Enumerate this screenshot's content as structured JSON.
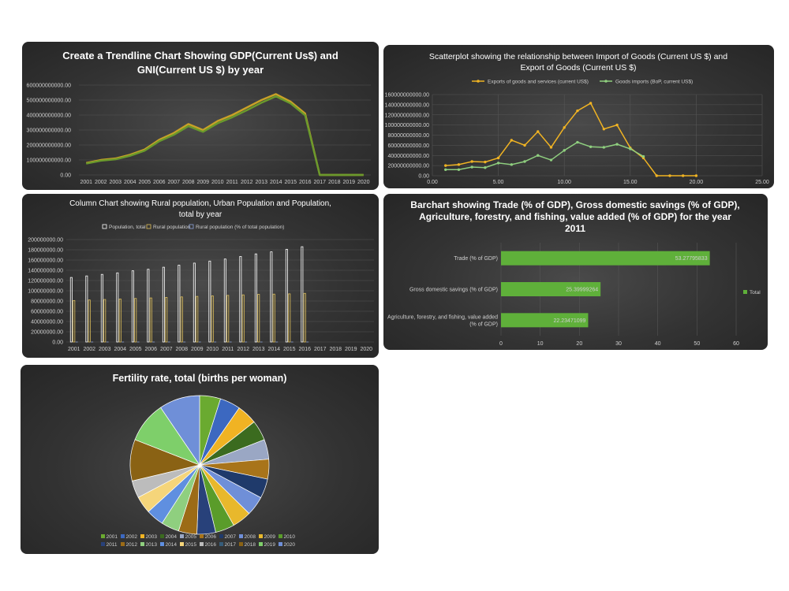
{
  "chart_data": [
    {
      "type": "line",
      "title": "Create a Trendline Chart Showing GDP(Current Us$) and GNI(Current US $) by year",
      "title_lines": [
        "Create a Trendline Chart Showing GDP(Current Us$) and",
        "GNI(Current US $) by year"
      ],
      "categories": [
        "2001",
        "2002",
        "2003",
        "2004",
        "2005",
        "2006",
        "2007",
        "2008",
        "2009",
        "2010",
        "2011",
        "2012",
        "2013",
        "2014",
        "2015",
        "2016",
        "2017",
        "2018",
        "2019",
        "2020"
      ],
      "series": [
        {
          "values": [
            80000000000,
            100000000000,
            110000000000,
            135000000000,
            170000000000,
            235000000000,
            280000000000,
            340000000000,
            300000000000,
            360000000000,
            400000000000,
            450000000000,
            500000000000,
            540000000000,
            490000000000,
            410000000000,
            0,
            0,
            0,
            0
          ]
        },
        {
          "values": [
            76000000000,
            95000000000,
            104000000000,
            128000000000,
            162000000000,
            225000000000,
            268000000000,
            326000000000,
            288000000000,
            345000000000,
            385000000000,
            432000000000,
            482000000000,
            525000000000,
            478000000000,
            398000000000,
            0,
            0,
            0,
            0
          ]
        }
      ],
      "colors": [
        "#c9a227",
        "#6a9a2c"
      ],
      "ylim": [
        0,
        600000000000
      ],
      "yticks": [
        "0.00",
        "100000000000.00",
        "200000000000.00",
        "300000000000.00",
        "400000000000.00",
        "500000000000.00",
        "600000000000.00"
      ],
      "grid": true
    },
    {
      "type": "scatter",
      "title": "Scatterplot showing the relationship between Import of Goods  (Current US $)  and Export of Goods (Current US $)",
      "title_lines": [
        "Scatterplot showing the relationship between Import of Goods  (Current US $)  and",
        "Export of Goods (Current US $)"
      ],
      "legend_position": "top",
      "series": [
        {
          "name": "Exports of goods and services (current US$)",
          "color": "#f0b323",
          "x": [
            1,
            2,
            3,
            4,
            5,
            6,
            7,
            8,
            9,
            10,
            11,
            12,
            13,
            14,
            15,
            16,
            17,
            18,
            19,
            20
          ],
          "y": [
            20000000000,
            22000000000,
            28000000000,
            27000000000,
            35000000000,
            70000000000,
            60000000000,
            87000000000,
            56000000000,
            95000000000,
            128000000000,
            143000000000,
            92000000000,
            100000000000,
            55000000000,
            35000000000,
            0,
            0,
            0,
            0
          ]
        },
        {
          "name": "Goods imports (BoP, current US$)",
          "color": "#8fcf7f",
          "x": [
            1,
            2,
            3,
            4,
            5,
            6,
            7,
            8,
            9,
            10,
            11,
            12,
            13,
            14,
            15,
            16
          ],
          "y": [
            12000000000,
            12000000000,
            17000000000,
            16000000000,
            25000000000,
            22000000000,
            28000000000,
            40000000000,
            31000000000,
            50000000000,
            66000000000,
            57000000000,
            56000000000,
            62000000000,
            53000000000,
            38000000000
          ]
        }
      ],
      "xlim": [
        0,
        25
      ],
      "xticks": [
        "0.00",
        "5.00",
        "10.00",
        "15.00",
        "20.00",
        "25.00"
      ],
      "ylim": [
        0,
        160000000000
      ],
      "yticks": [
        "0.00",
        "20000000000.00",
        "40000000000.00",
        "60000000000.00",
        "80000000000.00",
        "100000000000.00",
        "120000000000.00",
        "140000000000.00",
        "160000000000.00"
      ],
      "grid": true
    },
    {
      "type": "bar",
      "title": "Column Chart showing Rural population, Urban Population and Population, total by year",
      "title_lines": [
        "Column Chart showing Rural population, Urban Population and Population,",
        "total by year"
      ],
      "legend_position": "top",
      "categories": [
        "2001",
        "2002",
        "2003",
        "2004",
        "2005",
        "2006",
        "2007",
        "2008",
        "2009",
        "2010",
        "2011",
        "2012",
        "2013",
        "2014",
        "2015",
        "2016",
        "2017",
        "2018",
        "2019",
        "2020"
      ],
      "series": [
        {
          "name": "Population, total",
          "color": "#ffffff",
          "values": [
            126000000,
            129000000,
            132000000,
            135000000,
            139000000,
            142000000,
            146000000,
            150000000,
            154000000,
            158000000,
            162000000,
            167000000,
            172000000,
            176000000,
            181000000,
            186000000,
            0,
            0,
            0,
            0
          ]
        },
        {
          "name": "Rural population",
          "color": "#e0c05a",
          "values": [
            81000000,
            82000000,
            83000000,
            84000000,
            85000000,
            86000000,
            87000000,
            88000000,
            89000000,
            90000000,
            91000000,
            92000000,
            93000000,
            93500000,
            94000000,
            95000000,
            0,
            0,
            0,
            0
          ]
        },
        {
          "name": "Rural population (% of total population)",
          "color": "#8ea3d8",
          "values": [
            65,
            64,
            63,
            62,
            61,
            61,
            60,
            59,
            58,
            57,
            56,
            55,
            54,
            53,
            52,
            51,
            0,
            0,
            0,
            0
          ]
        }
      ],
      "ylim": [
        0,
        200000000
      ],
      "yticks": [
        "0.00",
        "20000000.00",
        "40000000.00",
        "60000000.00",
        "80000000.00",
        "100000000.00",
        "120000000.00",
        "140000000.00",
        "160000000.00",
        "180000000.00",
        "200000000.00"
      ],
      "grid": true
    },
    {
      "type": "bar",
      "orientation": "horizontal",
      "title": "Barchart showing  Trade (% of GDP), Gross domestic savings (% of GDP), Agriculture, forestry, and fishing, value added (% of GDP) for the year 2011",
      "title_lines": [
        "Barchart showing  Trade (% of GDP), Gross domestic savings (% of GDP),",
        "Agriculture, forestry, and fishing, value added (% of GDP) for the year",
        "2011"
      ],
      "categories": [
        {
          "lines": [
            "Trade (% of GDP)"
          ]
        },
        {
          "lines": [
            "Gross domestic savings (% of GDP)"
          ]
        },
        {
          "lines": [
            "Agriculture, forestry, and fishing, value added",
            "(% of GDP)"
          ]
        }
      ],
      "values": [
        53.27795833,
        25.39999264,
        22.23471099
      ],
      "value_labels": [
        "53.27795833",
        "25.39999264",
        "22.23471099"
      ],
      "series_name": "Total",
      "legend_position": "right",
      "color": "#5fb03a",
      "xlim": [
        0,
        60
      ],
      "xticks": [
        "0",
        "10",
        "20",
        "30",
        "40",
        "50",
        "60"
      ],
      "grid": true
    },
    {
      "type": "pie",
      "title": "Fertility rate, total (births per woman)",
      "legend_position": "bottom",
      "labels": [
        "2001",
        "2002",
        "2003",
        "2004",
        "2005",
        "2006",
        "2007",
        "2008",
        "2009",
        "2010",
        "2011",
        "2012",
        "2013",
        "2014",
        "2015",
        "2016",
        "2017",
        "2018",
        "2019",
        "2020"
      ],
      "legend_rows": [
        [
          "2001",
          "2002",
          "2003",
          "2004",
          "2005",
          "2006",
          "2007",
          "2008",
          "2009",
          "2010"
        ],
        [
          "2011",
          "2012",
          "2013",
          "2014",
          "2015",
          "2016",
          "2017",
          "2018",
          "2019",
          "2020"
        ]
      ],
      "values": [
        5.8,
        5.7,
        5.6,
        5.6,
        5.5,
        5.5,
        5.4,
        5.4,
        5.3,
        5.3,
        5.2,
        5.1,
        5.0,
        4.9,
        4.8,
        4.8,
        0,
        11.5,
        11.4,
        11.3
      ],
      "colors": [
        "#6aaa30",
        "#3c68c0",
        "#f0b323",
        "#3b6b1f",
        "#9aa7c4",
        "#a8741a",
        "#1f3a6b",
        "#6f8fd8",
        "#e8b82c",
        "#5a9c2a",
        "#28417a",
        "#9c6b16",
        "#8fcf7f",
        "#5f8fe0",
        "#f5d57a",
        "#bcbcbc",
        "#365c7a",
        "#8a6214",
        "#7ecf6a",
        "#6f8fd8"
      ]
    }
  ]
}
